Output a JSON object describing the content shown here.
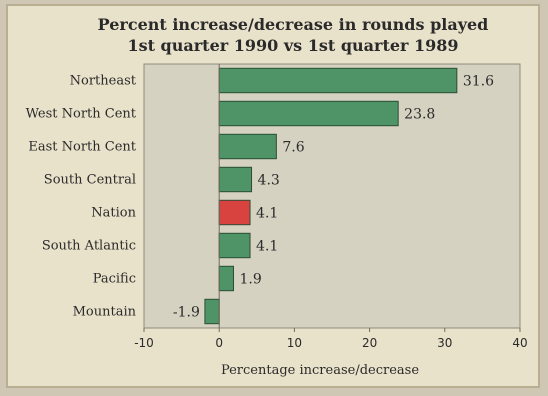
{
  "colors": {
    "background": "#e9e2cb",
    "plot_area": "#d6d2c2",
    "bar": "#4f9466",
    "highlight_bar": "#d9433f",
    "bar_stroke": "#2c4d35"
  },
  "chart_data": {
    "type": "bar",
    "orientation": "horizontal",
    "title": [
      "Percent increase/decrease in rounds played",
      "1st quarter 1990 vs 1st quarter 1989"
    ],
    "xlabel": "Percentage increase/decrease",
    "ylabel": "",
    "categories": [
      "Northeast",
      "West North Cent",
      "East North Cent",
      "South Central",
      "Nation",
      "South Atlantic",
      "Pacific",
      "Mountain"
    ],
    "values": [
      31.6,
      23.8,
      7.6,
      4.3,
      4.1,
      4.1,
      1.9,
      -1.9
    ],
    "value_labels": [
      "31.6",
      "23.8",
      "7.6",
      "4.3",
      "4.1",
      "4.1",
      "1.9",
      "-1.9"
    ],
    "highlight": "Nation",
    "xlim": [
      -10,
      40
    ],
    "xticks": [
      -10,
      0,
      10,
      20,
      30,
      40
    ],
    "xtick_labels": [
      "-10",
      "0",
      "10",
      "20",
      "30",
      "40"
    ],
    "grid": false,
    "legend": "none"
  }
}
